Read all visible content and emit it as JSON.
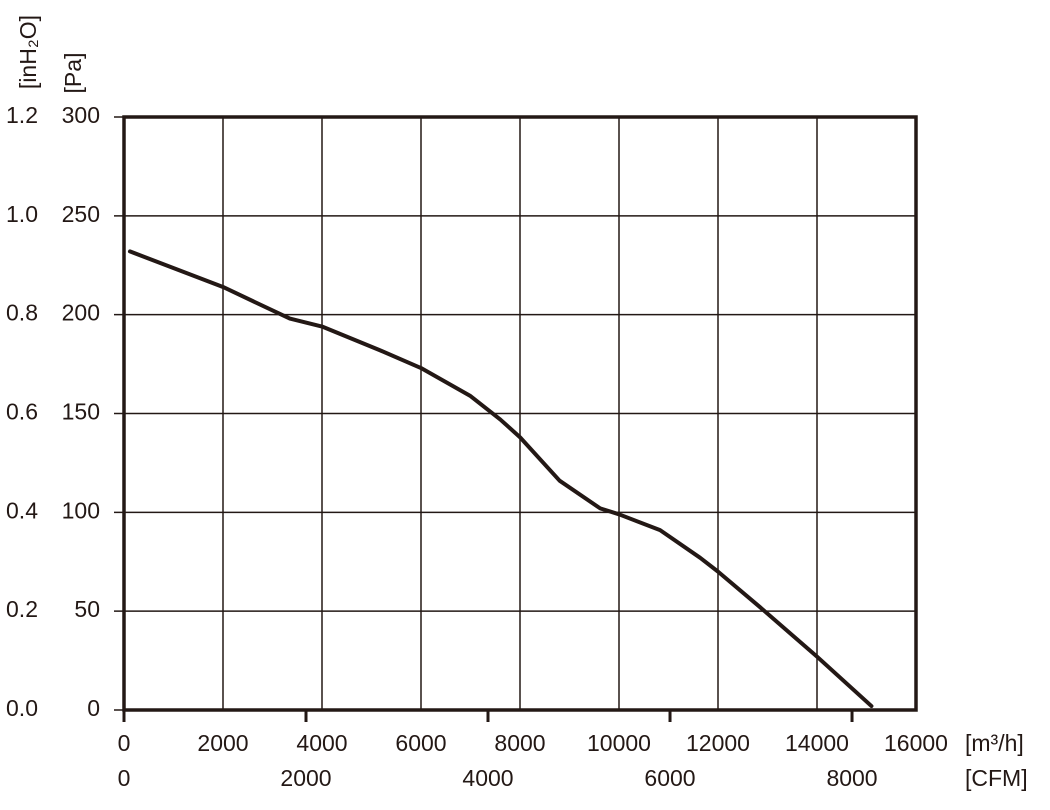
{
  "chart_data": {
    "type": "line",
    "x_unit": "[m³/h]",
    "x2_unit": "[CFM]",
    "y_unit": "[Pa]",
    "y2_unit": "[inH₂O]",
    "xlim": [
      0,
      16000
    ],
    "xticks": [
      0,
      2000,
      4000,
      6000,
      8000,
      10000,
      12000,
      14000,
      16000
    ],
    "x2lim": [
      0,
      8703
    ],
    "x2ticks": [
      0,
      2000,
      4000,
      6000,
      8000
    ],
    "ylim": [
      0,
      300
    ],
    "yticks": [
      0,
      50,
      100,
      150,
      200,
      250,
      300
    ],
    "y2lim": [
      0,
      1.2
    ],
    "y2ticks": [
      {
        "value": 0,
        "label": "0.0"
      },
      0.2,
      0.4,
      0.6,
      0.8,
      {
        "value": 1,
        "label": "1.0"
      },
      1.2
    ],
    "grid": true,
    "x": [
      120,
      2000,
      3350,
      4000,
      5170,
      6000,
      6990,
      7600,
      8000,
      8800,
      9620,
      10000,
      10830,
      11640,
      12000,
      12850,
      14000,
      15100
    ],
    "series": [
      {
        "color": "#231815",
        "values": [
          232,
          214,
          198,
          194,
          182,
          173,
          159,
          147,
          138,
          116,
          102,
          99,
          91,
          77,
          70,
          52,
          27,
          2
        ]
      }
    ]
  }
}
